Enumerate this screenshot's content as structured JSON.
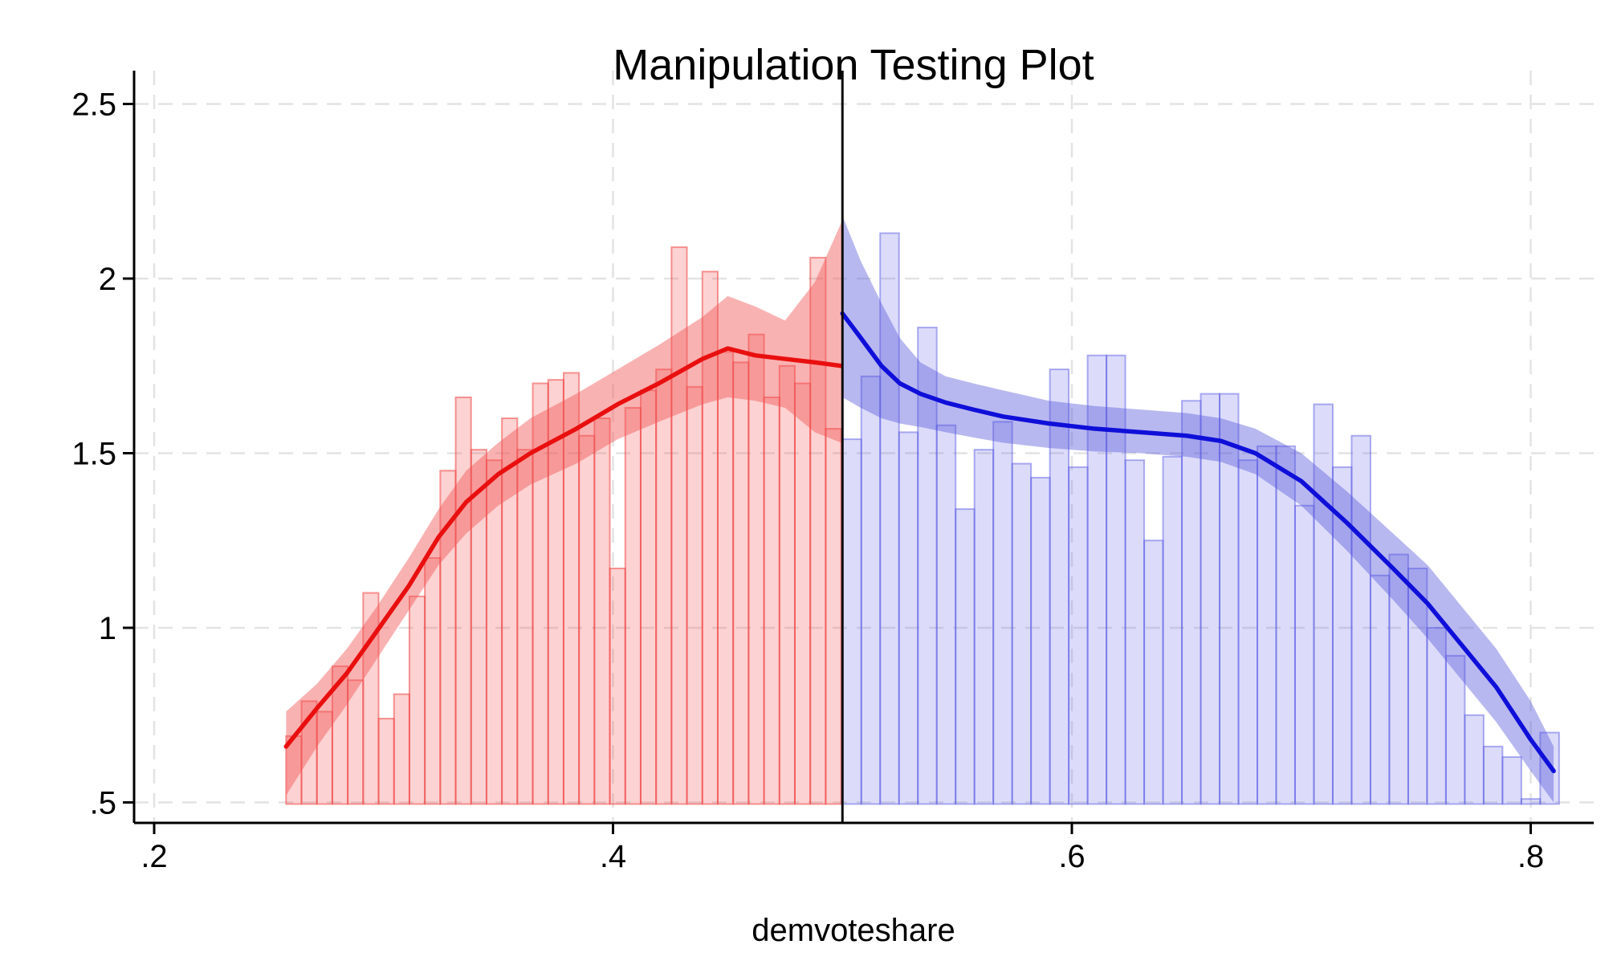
{
  "title": "Manipulation Testing Plot",
  "x_axis": {
    "label": "demvoteshare",
    "ticks": [
      0.2,
      0.4,
      0.6,
      0.8
    ],
    "tick_labels": [
      ".2",
      ".4",
      ".6",
      ".8"
    ],
    "range": [
      0.191,
      0.828
    ]
  },
  "y_axis": {
    "ticks": [
      0.5,
      1.0,
      1.5,
      2.0,
      2.5
    ],
    "tick_labels": [
      ".5",
      "1",
      "1.5",
      "2",
      "2.5"
    ],
    "range": [
      0.447,
      2.55
    ]
  },
  "colors": {
    "background": "#ffffff",
    "axis": "#000000",
    "grid": "#e3e3e3",
    "cutoff_line": "#0a0a0a",
    "red_line": "#e90f0f",
    "red_band": "rgba(242,85,85,0.45)",
    "red_bar_fill": "rgba(244,80,80,0.26)",
    "red_bar_border": "rgba(240,70,70,0.55)",
    "blue_line": "#0f0fd9",
    "blue_band": "rgba(85,85,220,0.42)",
    "blue_bar_fill": "rgba(95,95,230,0.22)",
    "blue_bar_border": "rgba(95,95,230,0.50)"
  },
  "chart_data": {
    "type": "histogram+line-with-ci",
    "title": "Manipulation Testing Plot",
    "xlabel": "demvoteshare",
    "ylabel": "",
    "xlim": [
      0.191,
      0.828
    ],
    "ylim": [
      0.447,
      2.55
    ],
    "grid": true,
    "legend": false,
    "cutoff": 0.5,
    "bar_baseline": 0.5,
    "series": [
      {
        "name": "left-of-cutoff (red)",
        "histogram": {
          "bin_start": 0.2575,
          "bin_width": 0.00672,
          "heights": [
            0.69,
            0.79,
            0.76,
            0.89,
            0.85,
            1.1,
            0.74,
            0.81,
            1.09,
            1.2,
            1.45,
            1.66,
            1.51,
            1.48,
            1.6,
            1.51,
            1.7,
            1.71,
            1.73,
            1.55,
            1.6,
            1.17,
            1.63,
            1.68,
            1.74,
            2.09,
            1.69,
            2.02,
            1.79,
            1.76,
            1.84,
            1.66,
            1.75,
            1.7,
            2.06,
            1.57
          ]
        },
        "line": {
          "x": [
            0.2575,
            0.271,
            0.284,
            0.297,
            0.311,
            0.324,
            0.336,
            0.35,
            0.364,
            0.384,
            0.402,
            0.42,
            0.439,
            0.45,
            0.462,
            0.475,
            0.488,
            0.4995
          ],
          "y": [
            0.66,
            0.77,
            0.87,
            0.99,
            1.12,
            1.26,
            1.36,
            1.44,
            1.5,
            1.57,
            1.64,
            1.7,
            1.77,
            1.8,
            1.78,
            1.77,
            1.76,
            1.75
          ]
        },
        "ci_upper": [
          0.76,
          0.84,
          0.94,
          1.06,
          1.2,
          1.34,
          1.45,
          1.53,
          1.6,
          1.67,
          1.74,
          1.81,
          1.89,
          1.95,
          1.92,
          1.88,
          1.99,
          2.16
        ],
        "ci_lower": [
          0.52,
          0.66,
          0.78,
          0.91,
          1.05,
          1.18,
          1.27,
          1.35,
          1.41,
          1.47,
          1.54,
          1.59,
          1.64,
          1.66,
          1.65,
          1.63,
          1.56,
          1.53
        ]
      },
      {
        "name": "right-of-cutoff (blue)",
        "histogram": {
          "bin_start": 0.5,
          "bin_width": 0.00822,
          "heights": [
            1.54,
            1.72,
            2.13,
            1.56,
            1.86,
            1.58,
            1.34,
            1.51,
            1.59,
            1.47,
            1.43,
            1.74,
            1.46,
            1.78,
            1.78,
            1.48,
            1.25,
            1.49,
            1.65,
            1.67,
            1.67,
            1.48,
            1.52,
            1.52,
            1.35,
            1.64,
            1.46,
            1.55,
            1.15,
            1.21,
            1.17,
            1.0,
            0.92,
            0.75,
            0.66,
            0.63,
            0.51,
            0.7
          ]
        },
        "line": {
          "x": [
            0.5,
            0.508,
            0.517,
            0.525,
            0.534,
            0.545,
            0.557,
            0.57,
            0.59,
            0.61,
            0.63,
            0.65,
            0.665,
            0.68,
            0.7,
            0.72,
            0.74,
            0.755,
            0.77,
            0.785,
            0.8,
            0.81
          ],
          "y": [
            1.9,
            1.83,
            1.75,
            1.7,
            1.67,
            1.645,
            1.625,
            1.605,
            1.585,
            1.57,
            1.56,
            1.55,
            1.535,
            1.5,
            1.42,
            1.3,
            1.17,
            1.07,
            0.95,
            0.83,
            0.68,
            0.59
          ]
        },
        "ci_upper": [
          2.18,
          2.05,
          1.93,
          1.83,
          1.76,
          1.72,
          1.7,
          1.68,
          1.65,
          1.635,
          1.625,
          1.615,
          1.6,
          1.57,
          1.5,
          1.39,
          1.27,
          1.18,
          1.06,
          0.94,
          0.79,
          0.66
        ],
        "ci_lower": [
          1.66,
          1.63,
          1.6,
          1.585,
          1.575,
          1.56,
          1.545,
          1.53,
          1.515,
          1.505,
          1.5,
          1.49,
          1.475,
          1.44,
          1.35,
          1.22,
          1.08,
          0.97,
          0.85,
          0.73,
          0.59,
          0.5
        ]
      }
    ]
  }
}
